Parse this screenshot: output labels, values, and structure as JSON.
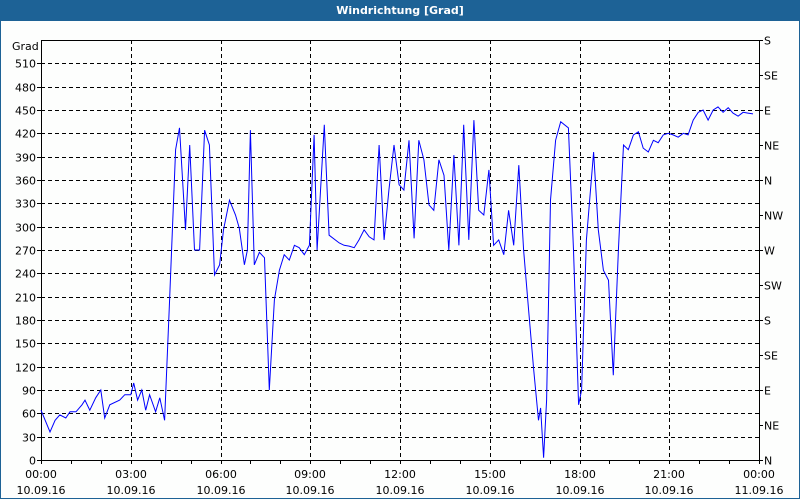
{
  "window": {
    "title": "Windrichtung [Grad]"
  },
  "colors": {
    "titlebar": "#1d6296",
    "series": "#0000ff",
    "grid": "#000000"
  },
  "chart_data": {
    "type": "line",
    "title": "Windrichtung [Grad]",
    "ylabel": "Grad",
    "ylim": [
      0,
      540
    ],
    "xlim_hours": [
      0,
      24
    ],
    "grid": true,
    "y_ticks": [
      0,
      30,
      60,
      90,
      120,
      150,
      180,
      210,
      240,
      270,
      300,
      330,
      360,
      390,
      420,
      450,
      480,
      510
    ],
    "y_tick_labels": [
      "0",
      "30",
      "60",
      "90",
      "120",
      "150",
      "180",
      "210",
      "240",
      "270",
      "300",
      "330",
      "360",
      "390",
      "420",
      "450",
      "480",
      "510"
    ],
    "right_ticks": [
      0,
      45,
      90,
      135,
      180,
      225,
      270,
      315,
      360,
      405,
      450,
      495,
      540
    ],
    "right_tick_labels": [
      "N",
      "NE",
      "E",
      "SE",
      "S",
      "SW",
      "W",
      "NW",
      "N",
      "NE",
      "E",
      "SE",
      "S"
    ],
    "x_ticks": [
      {
        "time": "00:00",
        "date": "10.09.16"
      },
      {
        "time": "03:00",
        "date": "10.09.16"
      },
      {
        "time": "06:00",
        "date": "10.09.16"
      },
      {
        "time": "09:00",
        "date": "10.09.16"
      },
      {
        "time": "12:00",
        "date": "10.09.16"
      },
      {
        "time": "15:00",
        "date": "10.09.16"
      },
      {
        "time": "18:00",
        "date": "10.09.16"
      },
      {
        "time": "21:00",
        "date": "10.09.16"
      },
      {
        "time": "00:00",
        "date": "11.09.16"
      }
    ],
    "series": [
      {
        "x_hours": [
          0,
          0.3,
          0.47,
          0.63,
          0.83,
          0.97,
          1.17,
          1.37,
          1.47,
          1.63,
          1.83,
          2.0,
          2.13,
          2.3,
          2.63,
          2.8,
          3.0,
          3.1,
          3.23,
          3.37,
          3.5,
          3.63,
          3.83,
          3.97,
          4.13,
          4.3,
          4.5,
          4.63,
          4.83,
          4.97,
          5.13,
          5.3,
          5.47,
          5.63,
          5.8,
          5.97,
          6.1,
          6.3,
          6.5,
          6.63,
          6.8,
          6.9,
          7.0,
          7.13,
          7.3,
          7.47,
          7.63,
          7.8,
          7.97,
          8.13,
          8.3,
          8.47,
          8.63,
          8.8,
          8.97,
          9.13,
          9.23,
          9.47,
          9.63,
          9.97,
          10.13,
          10.3,
          10.47,
          10.63,
          10.8,
          10.97,
          11.13,
          11.3,
          11.47,
          11.63,
          11.8,
          11.97,
          12.13,
          12.3,
          12.47,
          12.63,
          12.8,
          12.97,
          13.13,
          13.3,
          13.47,
          13.63,
          13.8,
          13.97,
          14.13,
          14.3,
          14.47,
          14.63,
          14.8,
          14.97,
          15.13,
          15.3,
          15.47,
          15.63,
          15.8,
          15.97,
          16.13,
          16.3,
          16.47,
          16.63,
          16.7,
          16.8,
          16.9,
          17.03,
          17.2,
          17.37,
          17.63,
          17.8,
          17.97,
          18.07,
          18.23,
          18.47,
          18.63,
          18.8,
          18.97,
          19.13,
          19.3,
          19.47,
          19.63,
          19.8,
          19.97,
          20.13,
          20.3,
          20.47,
          20.63,
          20.8,
          20.97,
          21.13,
          21.3,
          21.47,
          21.63,
          21.8,
          21.97,
          22.13,
          22.3,
          22.47,
          22.63,
          22.8,
          22.97,
          23.13,
          23.3,
          23.47,
          23.63,
          23.8
        ],
        "values": [
          64,
          36,
          51,
          58,
          54,
          62,
          62,
          71,
          77,
          64,
          80,
          90,
          54,
          71,
          77,
          84,
          84,
          99,
          77,
          90,
          64,
          84,
          62,
          80,
          51,
          206,
          399,
          427,
          296,
          405,
          270,
          270,
          424,
          405,
          238,
          251,
          296,
          334,
          315,
          298,
          251,
          270,
          424,
          251,
          267,
          260,
          90,
          206,
          244,
          264,
          257,
          276,
          273,
          264,
          276,
          418,
          270,
          431,
          289,
          279,
          276,
          275,
          273,
          283,
          296,
          287,
          283,
          405,
          283,
          347,
          405,
          354,
          347,
          411,
          285,
          411,
          386,
          328,
          321,
          386,
          366,
          270,
          392,
          276,
          431,
          283,
          437,
          321,
          315,
          373,
          276,
          283,
          264,
          321,
          276,
          379,
          270,
          193,
          116,
          51,
          67,
          3,
          77,
          334,
          411,
          435,
          427,
          270,
          71,
          90,
          283,
          396,
          296,
          244,
          231,
          109,
          270,
          405,
          399,
          418,
          422,
          401,
          396,
          411,
          408,
          418,
          420,
          418,
          415,
          420,
          418,
          437,
          447,
          450,
          437,
          450,
          454,
          447,
          453,
          446,
          442,
          447,
          446,
          445
        ]
      }
    ]
  }
}
